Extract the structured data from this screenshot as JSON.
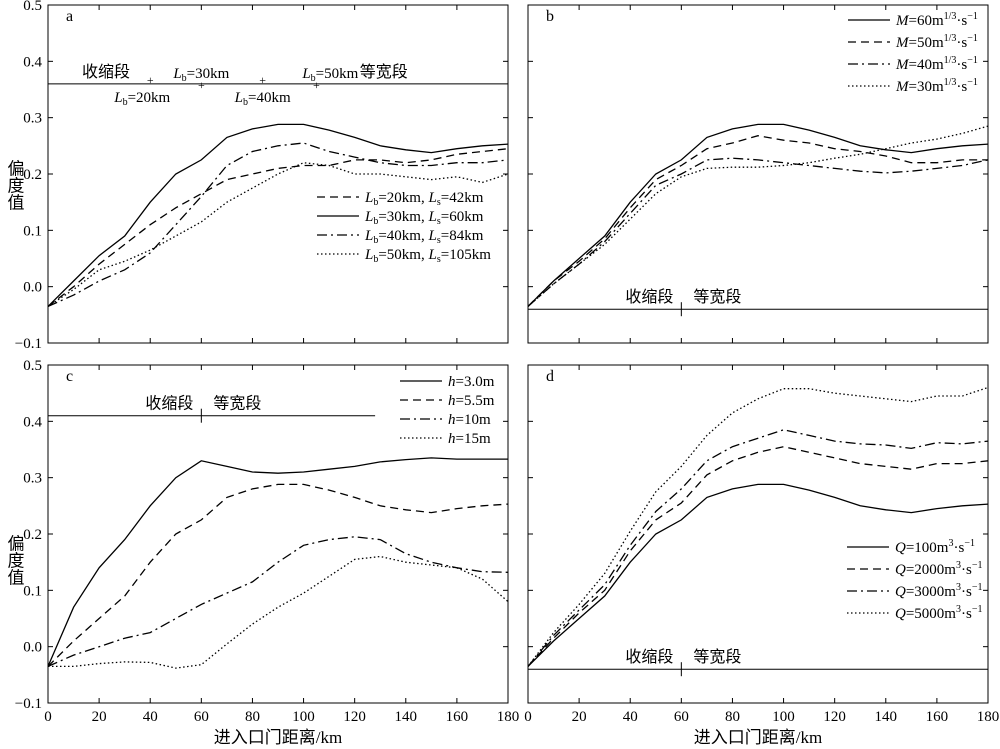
{
  "figure": {
    "ylabel_left": "偏度值",
    "xlabel_bottom": "进入口门距离/km"
  },
  "chart_data": [
    {
      "id": "a",
      "panel_label": "a",
      "type": "line",
      "xlim": [
        0,
        180
      ],
      "ylim": [
        -0.1,
        0.5
      ],
      "xticks": [],
      "yticks": [
        "−0.1",
        "0.0",
        "0.1",
        "0.2",
        "0.3",
        "0.4",
        "0.5"
      ],
      "x": [
        0,
        10,
        20,
        30,
        40,
        50,
        60,
        70,
        80,
        90,
        100,
        110,
        120,
        130,
        140,
        150,
        160,
        170,
        180
      ],
      "series": [
        {
          "legend": "Lb=20km, Ls=42km",
          "Lb_val": "20",
          "Ls_val": "42",
          "values": [
            -0.035,
            0.0,
            0.04,
            0.075,
            0.11,
            0.14,
            0.165,
            0.19,
            0.2,
            0.21,
            0.215,
            0.215,
            0.225,
            0.225,
            0.22,
            0.225,
            0.235,
            0.24,
            0.245
          ]
        },
        {
          "legend": "Lb=30km, Ls=60km",
          "Lb_val": "30",
          "Ls_val": "60",
          "values": [
            -0.035,
            0.01,
            0.055,
            0.09,
            0.15,
            0.2,
            0.225,
            0.265,
            0.28,
            0.288,
            0.288,
            0.278,
            0.265,
            0.25,
            0.243,
            0.238,
            0.245,
            0.25,
            0.253
          ]
        },
        {
          "legend": "Lb=40km, Ls=84km",
          "Lb_val": "40",
          "Ls_val": "84",
          "values": [
            -0.035,
            -0.015,
            0.01,
            0.03,
            0.06,
            0.11,
            0.16,
            0.215,
            0.24,
            0.25,
            0.255,
            0.24,
            0.23,
            0.22,
            0.215,
            0.215,
            0.22,
            0.22,
            0.225
          ]
        },
        {
          "legend": "Lb=50km, Ls=105km",
          "Lb_val": "50",
          "Ls_val": "105",
          "values": [
            -0.035,
            -0.005,
            0.03,
            0.045,
            0.065,
            0.09,
            0.115,
            0.15,
            0.175,
            0.2,
            0.22,
            0.215,
            0.2,
            0.2,
            0.195,
            0.19,
            0.195,
            0.185,
            0.2
          ]
        }
      ],
      "section_line_y": 0.36,
      "section_labels": {
        "left": "收缩段",
        "right": "等宽段"
      },
      "lb_markers": [
        {
          "value": "20",
          "x": 40
        },
        {
          "value": "30",
          "x": 60
        },
        {
          "value": "40",
          "x": 84
        },
        {
          "value": "50",
          "x": 105
        }
      ]
    },
    {
      "id": "b",
      "panel_label": "b",
      "type": "line",
      "xlim": [
        0,
        180
      ],
      "ylim": [
        -0.1,
        0.5
      ],
      "x": [
        0,
        10,
        20,
        30,
        40,
        50,
        60,
        70,
        80,
        90,
        100,
        110,
        120,
        130,
        140,
        150,
        160,
        170,
        180
      ],
      "series": [
        {
          "legend": "M=60m1/3·s−1",
          "sym": "M",
          "eq": "=60m",
          "sup": "1/3",
          "unit": "·s",
          "unit_sup": "−1",
          "values": [
            -0.035,
            0.01,
            0.05,
            0.09,
            0.15,
            0.2,
            0.225,
            0.265,
            0.28,
            0.288,
            0.288,
            0.278,
            0.265,
            0.25,
            0.243,
            0.238,
            0.245,
            0.25,
            0.253
          ]
        },
        {
          "legend": "M=50m1/3·s−1",
          "sym": "M",
          "eq": "=50m",
          "sup": "1/3",
          "unit": "·s",
          "unit_sup": "−1",
          "values": [
            -0.035,
            0.01,
            0.045,
            0.085,
            0.14,
            0.19,
            0.215,
            0.245,
            0.255,
            0.268,
            0.26,
            0.255,
            0.245,
            0.24,
            0.232,
            0.22,
            0.22,
            0.225,
            0.225
          ]
        },
        {
          "legend": "M=40m1/3·s−1",
          "sym": "M",
          "eq": "=40m",
          "sup": "1/3",
          "unit": "·s",
          "unit_sup": "−1",
          "values": [
            -0.035,
            0.005,
            0.04,
            0.08,
            0.13,
            0.18,
            0.2,
            0.225,
            0.228,
            0.225,
            0.22,
            0.215,
            0.21,
            0.205,
            0.202,
            0.205,
            0.21,
            0.215,
            0.225
          ]
        },
        {
          "legend": "M=30m1/3·s−1",
          "sym": "M",
          "eq": "=30m",
          "sup": "1/3",
          "unit": "·s",
          "unit_sup": "−1",
          "values": [
            -0.035,
            0.005,
            0.04,
            0.075,
            0.12,
            0.165,
            0.195,
            0.21,
            0.212,
            0.212,
            0.215,
            0.22,
            0.228,
            0.235,
            0.245,
            0.255,
            0.262,
            0.272,
            0.285
          ]
        }
      ],
      "section_line_y": -0.04,
      "section_labels": {
        "left": "收缩段",
        "right": "等宽段"
      },
      "section_split_x": 60
    },
    {
      "id": "c",
      "panel_label": "c",
      "type": "line",
      "xlim": [
        0,
        180
      ],
      "ylim": [
        -0.1,
        0.5
      ],
      "yticks": [
        "−0.1",
        "0.0",
        "0.1",
        "0.2",
        "0.3",
        "0.4",
        "0.5"
      ],
      "x": [
        0,
        10,
        20,
        30,
        40,
        50,
        60,
        70,
        80,
        90,
        100,
        110,
        120,
        130,
        140,
        150,
        160,
        170,
        180
      ],
      "series": [
        {
          "legend": "h=3.0m",
          "sym": "h",
          "eq": "=3.0m",
          "values": [
            -0.035,
            0.07,
            0.14,
            0.19,
            0.25,
            0.3,
            0.33,
            0.32,
            0.31,
            0.308,
            0.31,
            0.315,
            0.32,
            0.328,
            0.332,
            0.335,
            0.333,
            0.333,
            0.333
          ]
        },
        {
          "legend": "h=5.5m",
          "sym": "h",
          "eq": "=5.5m",
          "values": [
            -0.035,
            0.01,
            0.05,
            0.09,
            0.15,
            0.2,
            0.225,
            0.265,
            0.28,
            0.288,
            0.288,
            0.278,
            0.265,
            0.25,
            0.243,
            0.238,
            0.245,
            0.25,
            0.253
          ]
        },
        {
          "legend": "h=10m",
          "sym": "h",
          "eq": "=10m",
          "values": [
            -0.035,
            -0.015,
            0.0,
            0.015,
            0.025,
            0.05,
            0.075,
            0.095,
            0.115,
            0.15,
            0.18,
            0.19,
            0.195,
            0.19,
            0.165,
            0.15,
            0.14,
            0.133,
            0.132
          ]
        },
        {
          "legend": "h=15m",
          "sym": "h",
          "eq": "=15m",
          "values": [
            -0.035,
            -0.035,
            -0.03,
            -0.027,
            -0.028,
            -0.038,
            -0.032,
            0.005,
            0.04,
            0.07,
            0.095,
            0.125,
            0.155,
            0.16,
            0.15,
            0.145,
            0.14,
            0.12,
            0.08
          ]
        }
      ],
      "section_line_y": 0.41,
      "section_labels": {
        "left": "收缩段",
        "right": "等宽段"
      },
      "section_split_x": 60,
      "section_line_end_x": 128
    },
    {
      "id": "d",
      "panel_label": "d",
      "type": "line",
      "xlim": [
        0,
        180
      ],
      "ylim": [
        -0.1,
        0.5
      ],
      "x": [
        0,
        10,
        20,
        30,
        40,
        50,
        60,
        70,
        80,
        90,
        100,
        110,
        120,
        130,
        140,
        150,
        160,
        170,
        180
      ],
      "series": [
        {
          "legend": "Q=100m3·s−1",
          "sym": "Q",
          "eq": "=100m",
          "sup": "3",
          "unit": "·s",
          "unit_sup": "−1",
          "values": [
            -0.035,
            0.01,
            0.05,
            0.09,
            0.15,
            0.2,
            0.225,
            0.265,
            0.28,
            0.288,
            0.288,
            0.278,
            0.265,
            0.25,
            0.243,
            0.238,
            0.245,
            0.25,
            0.253
          ]
        },
        {
          "legend": "Q=2000m3·s−1",
          "sym": "Q",
          "eq": "=2000m",
          "sup": "3",
          "unit": "·s",
          "unit_sup": "−1",
          "values": [
            -0.035,
            0.015,
            0.06,
            0.1,
            0.17,
            0.225,
            0.255,
            0.305,
            0.33,
            0.345,
            0.355,
            0.345,
            0.335,
            0.325,
            0.32,
            0.315,
            0.325,
            0.325,
            0.33
          ]
        },
        {
          "legend": "Q=3000m3·s−1",
          "sym": "Q",
          "eq": "=3000m",
          "sup": "3",
          "unit": "·s",
          "unit_sup": "−1",
          "values": [
            -0.035,
            0.02,
            0.065,
            0.11,
            0.18,
            0.24,
            0.28,
            0.33,
            0.355,
            0.37,
            0.385,
            0.375,
            0.365,
            0.36,
            0.358,
            0.352,
            0.362,
            0.36,
            0.365
          ]
        },
        {
          "legend": "Q=5000m3·s−1",
          "sym": "Q",
          "eq": "=5000m",
          "sup": "3",
          "unit": "·s",
          "unit_sup": "−1",
          "values": [
            -0.035,
            0.025,
            0.075,
            0.13,
            0.205,
            0.275,
            0.32,
            0.375,
            0.415,
            0.44,
            0.458,
            0.458,
            0.45,
            0.445,
            0.44,
            0.435,
            0.445,
            0.445,
            0.46
          ]
        }
      ],
      "section_line_y": -0.04,
      "section_labels": {
        "left": "收缩段",
        "right": "等宽段"
      },
      "section_split_x": 60
    }
  ],
  "shared_axis": {
    "xticks": [
      "0",
      "20",
      "40",
      "60",
      "80",
      "100",
      "120",
      "140",
      "160",
      "180"
    ],
    "xtick_values": [
      0,
      20,
      40,
      60,
      80,
      100,
      120,
      140,
      160,
      180
    ],
    "ytick_values": [
      -0.1,
      0.0,
      0.1,
      0.2,
      0.3,
      0.4,
      0.5
    ],
    "yticks": [
      "−0.1",
      "0.0",
      "0.1",
      "0.2",
      "0.3",
      "0.4",
      "0.5"
    ]
  }
}
